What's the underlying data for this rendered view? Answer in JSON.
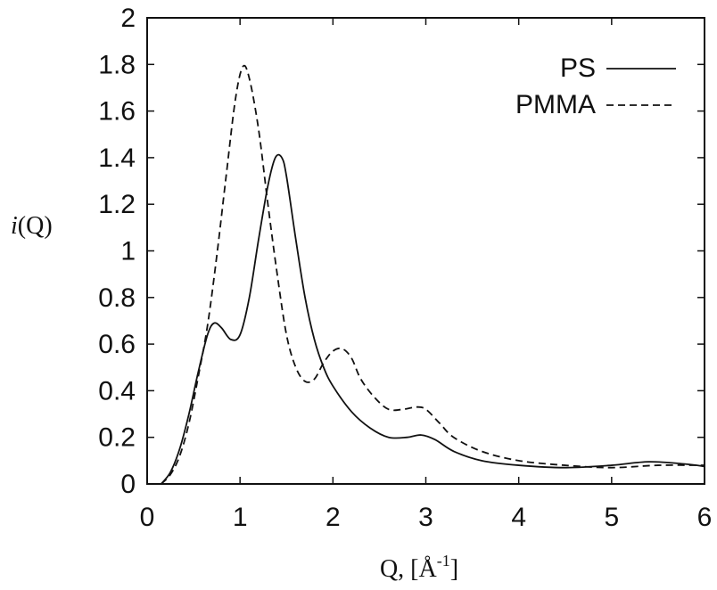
{
  "chart_data": {
    "type": "line",
    "title": "",
    "xlabel": "Q, [Å-1]",
    "ylabel": "i(Q)",
    "xlim": [
      0,
      6
    ],
    "ylim": [
      0,
      2
    ],
    "xticks": [
      "0",
      "1",
      "2",
      "3",
      "4",
      "5",
      "6"
    ],
    "yticks": [
      "0",
      "0.2",
      "0.4",
      "0.6",
      "0.8",
      "1",
      "1.2",
      "1.4",
      "1.6",
      "1.8",
      "2"
    ],
    "legend_position": "top-right",
    "grid": false,
    "series": [
      {
        "name": "PS",
        "style": "solid",
        "color": "#111111",
        "x": [
          0.15,
          0.25,
          0.35,
          0.45,
          0.55,
          0.65,
          0.72,
          0.8,
          0.9,
          1.0,
          1.1,
          1.2,
          1.3,
          1.38,
          1.45,
          1.5,
          1.6,
          1.7,
          1.8,
          1.9,
          2.0,
          2.2,
          2.4,
          2.6,
          2.8,
          2.95,
          3.1,
          3.3,
          3.6,
          4.0,
          4.5,
          5.0,
          5.4,
          5.8,
          6.0
        ],
        "y": [
          0.0,
          0.05,
          0.15,
          0.3,
          0.48,
          0.64,
          0.69,
          0.67,
          0.62,
          0.64,
          0.8,
          1.05,
          1.28,
          1.4,
          1.4,
          1.32,
          1.05,
          0.8,
          0.62,
          0.5,
          0.42,
          0.31,
          0.24,
          0.2,
          0.2,
          0.21,
          0.19,
          0.14,
          0.1,
          0.08,
          0.07,
          0.08,
          0.095,
          0.085,
          0.075
        ]
      },
      {
        "name": "PMMA",
        "style": "dashed",
        "color": "#111111",
        "x": [
          0.15,
          0.25,
          0.35,
          0.45,
          0.55,
          0.65,
          0.75,
          0.85,
          0.95,
          1.03,
          1.1,
          1.2,
          1.3,
          1.4,
          1.5,
          1.6,
          1.7,
          1.8,
          1.9,
          2.0,
          2.1,
          2.2,
          2.3,
          2.45,
          2.6,
          2.75,
          2.9,
          3.0,
          3.15,
          3.3,
          3.6,
          4.0,
          4.5,
          5.0,
          5.5,
          6.0
        ],
        "y": [
          0.0,
          0.04,
          0.12,
          0.26,
          0.46,
          0.68,
          0.98,
          1.32,
          1.65,
          1.79,
          1.74,
          1.52,
          1.2,
          0.9,
          0.64,
          0.5,
          0.44,
          0.45,
          0.52,
          0.57,
          0.58,
          0.54,
          0.45,
          0.37,
          0.32,
          0.32,
          0.33,
          0.32,
          0.26,
          0.2,
          0.14,
          0.1,
          0.08,
          0.07,
          0.08,
          0.08
        ]
      }
    ]
  }
}
